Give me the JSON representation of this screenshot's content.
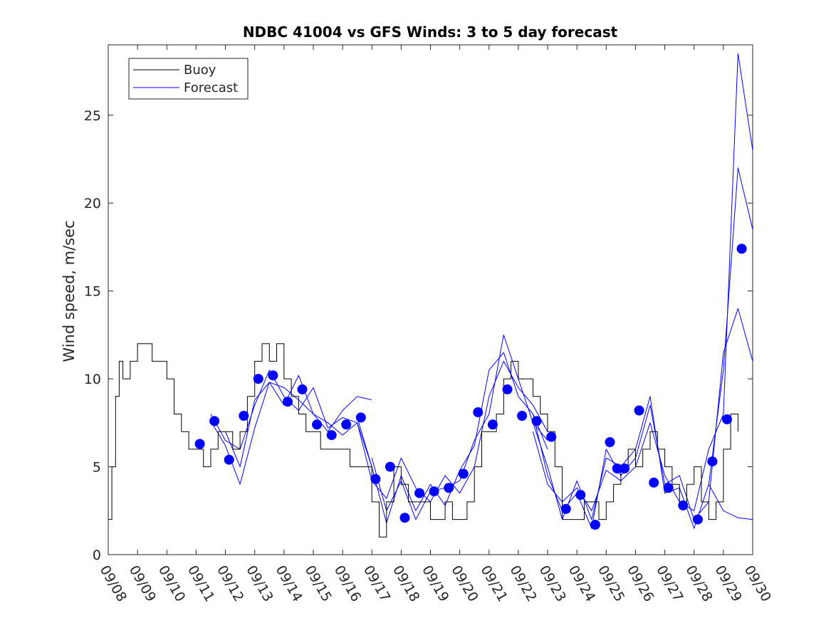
{
  "chart_data": {
    "type": "line",
    "title": "NDBC 41004 vs GFS Winds: 3 to 5 day forecast",
    "xlabel": "",
    "ylabel": "Wind speed, m/sec",
    "xlim": [
      "09/08",
      "09/30"
    ],
    "ylim": [
      0,
      29
    ],
    "x_tick_labels": [
      "09/08",
      "09/09",
      "09/10",
      "09/11",
      "09/12",
      "09/13",
      "09/14",
      "09/15",
      "09/16",
      "09/17",
      "09/18",
      "09/19",
      "09/20",
      "09/21",
      "09/22",
      "09/23",
      "09/24",
      "09/25",
      "09/26",
      "09/27",
      "09/28",
      "09/29",
      "09/30"
    ],
    "y_ticks": [
      0,
      5,
      10,
      15,
      20,
      25
    ],
    "y_tick_labels": [
      "0",
      "5",
      "10",
      "15",
      "20",
      "25"
    ],
    "grid": false,
    "legend": {
      "position": "top-left",
      "entries": [
        {
          "label": "Buoy",
          "color": "#000000"
        },
        {
          "label": "Forecast",
          "color": "#0000ff"
        }
      ]
    },
    "colors": {
      "buoy": "#000000",
      "forecast": "#0000ff",
      "forecast_markers": "#0000ff"
    },
    "buoy": {
      "x": [
        "09/08 00:00",
        "09/08 03:00",
        "09/08 06:00",
        "09/08 09:00",
        "09/08 12:00",
        "09/08 18:00",
        "09/09 00:00",
        "09/09 06:00",
        "09/09 12:00",
        "09/09 18:00",
        "09/10 00:00",
        "09/10 06:00",
        "09/10 12:00",
        "09/10 18:00",
        "09/11 00:00",
        "09/11 06:00",
        "09/11 12:00",
        "09/11 18:00",
        "09/12 00:00",
        "09/12 06:00",
        "09/12 12:00",
        "09/12 18:00",
        "09/13 00:00",
        "09/13 06:00",
        "09/13 12:00",
        "09/13 18:00",
        "09/14 00:00",
        "09/14 06:00",
        "09/14 12:00",
        "09/14 18:00",
        "09/15 00:00",
        "09/15 06:00",
        "09/15 12:00",
        "09/15 18:00",
        "09/16 00:00",
        "09/16 06:00",
        "09/16 12:00",
        "09/16 18:00",
        "09/17 00:00",
        "09/17 06:00",
        "09/17 12:00",
        "09/17 18:00",
        "09/18 00:00",
        "09/18 06:00",
        "09/18 12:00",
        "09/18 18:00",
        "09/19 00:00",
        "09/19 06:00",
        "09/19 12:00",
        "09/19 18:00",
        "09/20 00:00",
        "09/20 06:00",
        "09/20 12:00",
        "09/20 18:00",
        "09/21 00:00",
        "09/21 06:00",
        "09/21 12:00",
        "09/21 18:00",
        "09/22 00:00",
        "09/22 06:00",
        "09/22 12:00",
        "09/22 18:00",
        "09/23 00:00",
        "09/23 06:00",
        "09/23 12:00",
        "09/23 18:00",
        "09/24 00:00",
        "09/24 06:00",
        "09/24 12:00",
        "09/24 18:00",
        "09/25 00:00",
        "09/25 06:00",
        "09/25 12:00",
        "09/25 18:00",
        "09/26 00:00",
        "09/26 06:00",
        "09/26 12:00",
        "09/26 18:00",
        "09/27 00:00",
        "09/27 06:00",
        "09/27 12:00",
        "09/27 18:00",
        "09/28 00:00",
        "09/28 06:00",
        "09/28 12:00",
        "09/28 18:00",
        "09/29 00:00",
        "09/29 06:00",
        "09/29 12:00"
      ],
      "y": [
        2,
        5,
        9,
        11,
        10,
        11,
        12,
        12,
        11,
        11,
        10,
        8,
        7,
        6,
        6,
        5,
        6,
        7,
        7,
        6,
        7,
        9,
        11,
        12,
        11,
        12,
        10,
        9,
        8,
        7,
        7,
        6,
        6,
        6,
        6,
        5,
        5,
        5,
        3,
        1,
        3,
        5,
        4,
        3,
        3,
        3,
        2,
        2,
        3,
        2,
        2,
        3,
        5,
        7,
        7,
        8,
        10,
        11,
        10,
        10,
        9,
        8,
        7,
        5,
        2,
        2,
        2,
        3,
        3,
        2,
        3,
        4,
        5,
        6,
        5,
        6,
        7,
        6,
        5,
        4,
        3,
        4,
        5,
        3,
        2,
        3,
        6,
        8,
        7
      ]
    },
    "forecast_runs": [
      {
        "x": [
          "09/11 12:00",
          "09/12 00:00",
          "09/12 12:00",
          "09/13 00:00",
          "09/13 12:00",
          "09/14 00:00",
          "09/14 12:00",
          "09/15 00:00",
          "09/15 12:00",
          "09/16 00:00",
          "09/16 12:00",
          "09/17 00:00"
        ],
        "y": [
          7.6,
          6.2,
          4.0,
          7.2,
          9.8,
          9.5,
          8.8,
          8.0,
          7.0,
          8.2,
          9.0,
          8.8
        ]
      },
      {
        "x": [
          "09/11 12:00",
          "09/12 00:00",
          "09/12 12:00",
          "09/13 00:00",
          "09/13 12:00",
          "09/14 00:00",
          "09/14 12:00",
          "09/15 00:00",
          "09/15 12:00",
          "09/16 00:00",
          "09/16 12:00"
        ],
        "y": [
          8.0,
          6.5,
          6.0,
          8.5,
          10.5,
          9.0,
          8.2,
          9.5,
          7.2,
          7.8,
          7.5
        ]
      },
      {
        "x": [
          "09/12 00:00",
          "09/12 12:00",
          "09/13 00:00",
          "09/13 12:00",
          "09/14 00:00",
          "09/14 12:00",
          "09/15 00:00",
          "09/15 12:00",
          "09/16 00:00",
          "09/16 12:00",
          "09/17 00:00"
        ],
        "y": [
          7.0,
          5.0,
          8.8,
          9.8,
          8.5,
          10.2,
          8.0,
          7.5,
          6.8,
          7.5,
          5.0
        ]
      },
      {
        "x": [
          "09/16 12:00",
          "09/17 00:00",
          "09/17 12:00",
          "09/18 00:00",
          "09/18 12:00",
          "09/19 00:00",
          "09/19 12:00",
          "09/20 00:00",
          "09/20 12:00",
          "09/21 00:00",
          "09/21 12:00",
          "09/22 00:00",
          "09/22 12:00",
          "09/23 00:00"
        ],
        "y": [
          7.8,
          5.0,
          1.8,
          4.5,
          2.5,
          4.0,
          2.8,
          4.8,
          6.2,
          10.5,
          11.5,
          9.0,
          8.0,
          6.0
        ]
      },
      {
        "x": [
          "09/16 12:00",
          "09/17 00:00",
          "09/17 12:00",
          "09/18 00:00",
          "09/18 12:00",
          "09/19 00:00",
          "09/19 12:00",
          "09/20 00:00",
          "09/20 12:00",
          "09/21 00:00",
          "09/21 12:00",
          "09/22 00:00",
          "09/22 12:00",
          "09/23 00:00"
        ],
        "y": [
          7.5,
          4.2,
          3.2,
          5.5,
          3.8,
          3.0,
          4.5,
          3.5,
          5.0,
          9.0,
          11.0,
          9.5,
          8.5,
          7.0
        ]
      },
      {
        "x": [
          "09/17 00:00",
          "09/17 12:00",
          "09/18 00:00",
          "09/18 12:00",
          "09/19 00:00",
          "09/19 12:00",
          "09/20 00:00",
          "09/20 12:00",
          "09/21 00:00",
          "09/21 12:00",
          "09/22 00:00",
          "09/22 12:00",
          "09/23 00:00"
        ],
        "y": [
          5.5,
          2.5,
          4.2,
          2.0,
          3.6,
          3.8,
          4.2,
          6.5,
          8.0,
          12.5,
          10.0,
          7.5,
          6.5
        ]
      },
      {
        "x": [
          "09/22 12:00",
          "09/23 00:00",
          "09/23 12:00",
          "09/24 00:00",
          "09/24 12:00",
          "09/25 00:00",
          "09/25 12:00",
          "09/26 00:00",
          "09/26 12:00",
          "09/27 00:00",
          "09/27 12:00",
          "09/28 00:00",
          "09/28 12:00",
          "09/29 00:00",
          "09/29 12:00",
          "09/30 00:00"
        ],
        "y": [
          8.0,
          4.5,
          2.5,
          3.5,
          1.5,
          6.0,
          4.5,
          5.5,
          8.5,
          4.0,
          4.5,
          2.0,
          3.0,
          11.5,
          14.0,
          11.0
        ]
      },
      {
        "x": [
          "09/22 12:00",
          "09/23 00:00",
          "09/23 12:00",
          "09/24 00:00",
          "09/24 12:00",
          "09/25 00:00",
          "09/25 12:00",
          "09/26 00:00",
          "09/26 12:00",
          "09/27 00:00",
          "09/27 12:00",
          "09/28 00:00",
          "09/28 12:00",
          "09/29 00:00",
          "09/29 12:00",
          "09/30 00:00"
        ],
        "y": [
          7.5,
          5.0,
          2.0,
          4.2,
          2.0,
          5.5,
          5.0,
          6.0,
          9.0,
          3.5,
          3.8,
          1.5,
          4.0,
          10.5,
          22.0,
          18.5
        ]
      },
      {
        "x": [
          "09/22 12:00",
          "09/23 00:00",
          "09/23 12:00",
          "09/24 00:00",
          "09/24 12:00",
          "09/25 00:00",
          "09/25 12:00",
          "09/26 00:00",
          "09/26 12:00",
          "09/27 00:00",
          "09/27 12:00",
          "09/28 00:00",
          "09/28 12:00",
          "09/29 00:00",
          "09/29 12:00",
          "09/30 00:00"
        ],
        "y": [
          7.0,
          4.0,
          3.0,
          3.8,
          2.5,
          4.8,
          4.2,
          5.0,
          7.5,
          4.5,
          3.0,
          2.5,
          6.0,
          8.0,
          28.5,
          23.0
        ]
      },
      {
        "x": [
          "09/28 12:00",
          "09/29 00:00",
          "09/29 12:00",
          "09/30 00:00"
        ],
        "y": [
          4.0,
          2.5,
          2.1,
          2.0
        ]
      }
    ],
    "forecast_markers": {
      "x": [
        "09/11 03:00",
        "09/11 15:00",
        "09/12 03:00",
        "09/12 15:00",
        "09/13 03:00",
        "09/13 15:00",
        "09/14 03:00",
        "09/14 15:00",
        "09/15 03:00",
        "09/15 15:00",
        "09/16 03:00",
        "09/16 15:00",
        "09/17 03:00",
        "09/17 15:00",
        "09/18 03:00",
        "09/18 15:00",
        "09/19 03:00",
        "09/19 15:00",
        "09/20 03:00",
        "09/20 15:00",
        "09/21 03:00",
        "09/21 15:00",
        "09/22 03:00",
        "09/22 15:00",
        "09/23 03:00",
        "09/23 15:00",
        "09/24 03:00",
        "09/24 15:00",
        "09/25 03:00",
        "09/25 09:00",
        "09/25 15:00",
        "09/26 03:00",
        "09/26 15:00",
        "09/27 03:00",
        "09/27 15:00",
        "09/28 03:00",
        "09/28 15:00",
        "09/29 03:00",
        "09/29 15:00"
      ],
      "y": [
        6.3,
        7.6,
        5.4,
        7.9,
        10.0,
        10.2,
        8.7,
        9.4,
        7.4,
        6.8,
        7.4,
        7.8,
        4.3,
        5.0,
        2.1,
        3.5,
        3.6,
        3.8,
        4.6,
        8.1,
        7.4,
        9.4,
        7.9,
        7.6,
        6.7,
        2.6,
        3.4,
        1.7,
        6.4,
        4.9,
        4.9,
        8.2,
        4.1,
        3.8,
        2.8,
        2.0,
        5.3,
        7.7,
        17.4
      ]
    }
  }
}
